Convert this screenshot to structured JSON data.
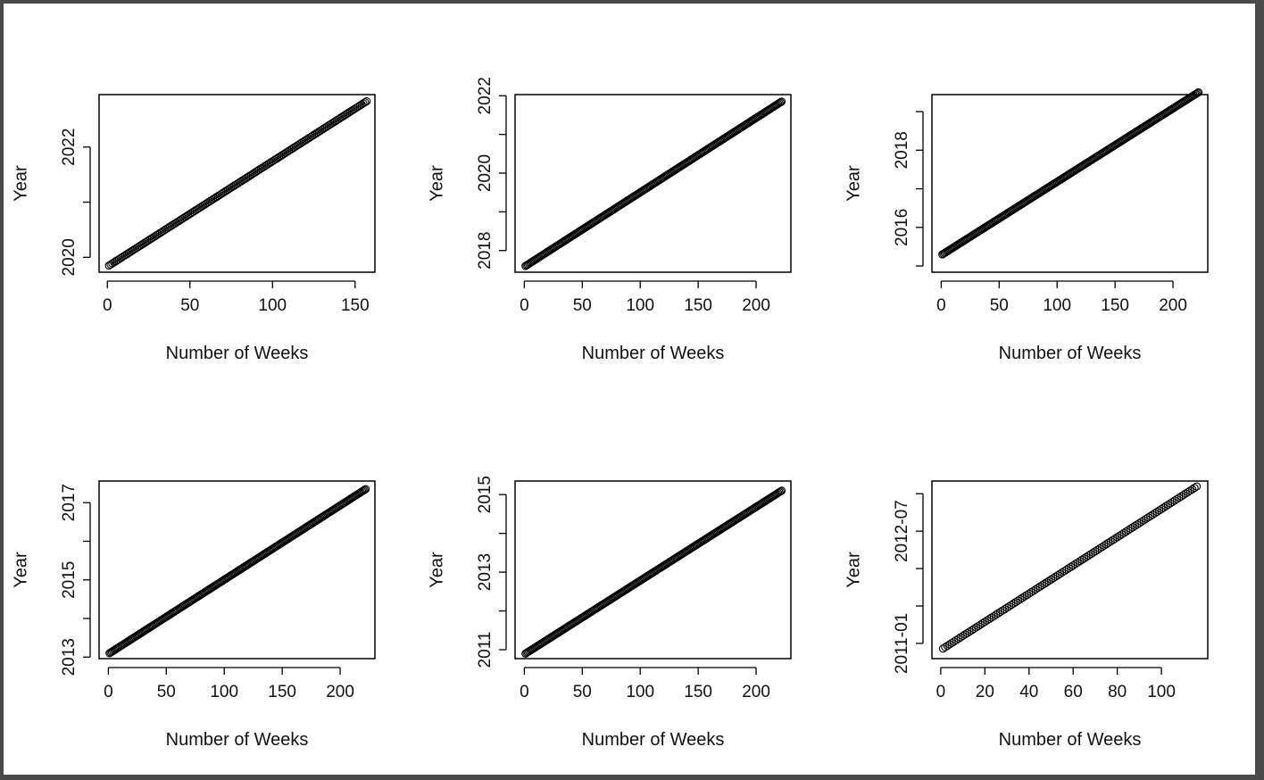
{
  "chart_data": [
    {
      "type": "scatter",
      "xlabel": "Number of Weeks",
      "ylabel": "Year",
      "x_ticks": [
        0,
        50,
        100,
        150
      ],
      "y_ticks": [
        2020,
        2021,
        2022
      ],
      "y_tick_labels": [
        "2020",
        "",
        "2022"
      ],
      "xlim": [
        -5,
        162
      ],
      "ylim": [
        2019.73,
        2022.95
      ],
      "points": {
        "x_start": 1,
        "x_end": 157,
        "y_start": 2019.85,
        "y_end": 2022.83
      },
      "marker": "open-circle"
    },
    {
      "type": "scatter",
      "xlabel": "Number of Weeks",
      "ylabel": "Year",
      "x_ticks": [
        0,
        50,
        100,
        150,
        200
      ],
      "y_ticks": [
        2018,
        2019,
        2020,
        2021,
        2022
      ],
      "y_tick_labels": [
        "2018",
        "",
        "2020",
        "",
        "2022"
      ],
      "xlim": [
        -8,
        230
      ],
      "ylim": [
        2017.44,
        2022.03
      ],
      "points": {
        "x_start": 1,
        "x_end": 222,
        "y_start": 2017.6,
        "y_end": 2021.85
      },
      "marker": "open-circle"
    },
    {
      "type": "scatter",
      "xlabel": "Number of Weeks",
      "ylabel": "Year",
      "x_ticks": [
        0,
        50,
        100,
        150,
        200
      ],
      "y_ticks": [
        2015,
        2016,
        2017,
        2018,
        2019
      ],
      "y_tick_labels": [
        "",
        "2016",
        "",
        "2018",
        ""
      ],
      "xlim": [
        -8,
        230
      ],
      "ylim": [
        2014.84,
        2019.44
      ],
      "points": {
        "x_start": 1,
        "x_end": 222,
        "y_start": 2015.3,
        "y_end": 2019.5
      },
      "marker": "open-circle"
    },
    {
      "type": "scatter",
      "xlabel": "Number of Weeks",
      "ylabel": "Year",
      "x_ticks": [
        0,
        50,
        100,
        150,
        200
      ],
      "y_ticks": [
        2013,
        2014,
        2015,
        2016,
        2017
      ],
      "y_tick_labels": [
        "2013",
        "",
        "2015",
        "",
        "2017"
      ],
      "xlim": [
        -8,
        230
      ],
      "ylim": [
        2012.96,
        2017.56
      ],
      "points": {
        "x_start": 1,
        "x_end": 222,
        "y_start": 2013.1,
        "y_end": 2017.35
      },
      "marker": "open-circle"
    },
    {
      "type": "scatter",
      "xlabel": "Number of Weeks",
      "ylabel": "Year",
      "x_ticks": [
        0,
        50,
        100,
        150,
        200
      ],
      "y_ticks": [
        2011,
        2012,
        2013,
        2014,
        2015
      ],
      "y_tick_labels": [
        "2011",
        "",
        "2013",
        "",
        "2015"
      ],
      "xlim": [
        -8,
        230
      ],
      "ylim": [
        2010.77,
        2015.35
      ],
      "points": {
        "x_start": 1,
        "x_end": 222,
        "y_start": 2010.9,
        "y_end": 2015.1
      },
      "marker": "open-circle"
    },
    {
      "type": "scatter",
      "xlabel": "Number of Weeks",
      "ylabel": "Year",
      "x_ticks": [
        0,
        20,
        40,
        60,
        80,
        100
      ],
      "y_ticks": [
        "2011-01",
        "2011-07",
        "2012-01",
        "2012-07",
        "2013-01"
      ],
      "y_tick_labels": [
        "2011-01",
        "",
        "",
        "2012-07",
        ""
      ],
      "xlim": [
        "-4",
        "121"
      ],
      "ylim": [
        "2010-10-18",
        "2013-03-02"
      ],
      "points": {
        "x_start": 1,
        "x_end": 116,
        "y_start": "2010-12-06",
        "y_end": "2013-02-06"
      },
      "marker": "open-circle"
    }
  ]
}
